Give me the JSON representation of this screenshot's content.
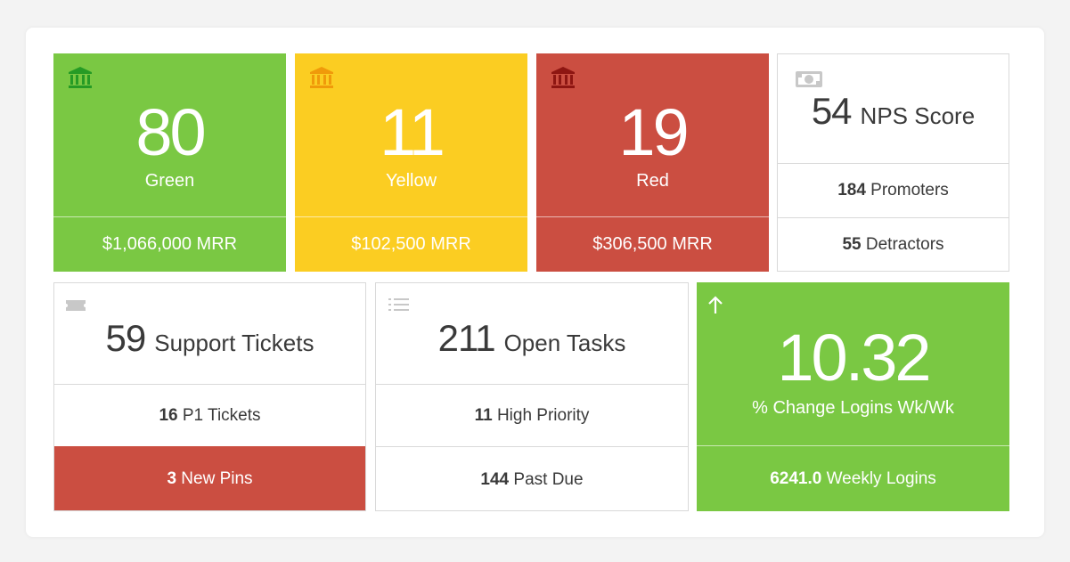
{
  "colors": {
    "green": "#7ac843",
    "yellow": "#fbcd22",
    "red": "#cb4e41",
    "icon_green": "#269b25",
    "icon_yellow": "#f09a0a",
    "icon_red": "#8e1612"
  },
  "health": [
    {
      "value": "80",
      "label": "Green",
      "mrr": "$1,066,000 MRR",
      "icon": "bank-icon"
    },
    {
      "value": "11",
      "label": "Yellow",
      "mrr": "$102,500 MRR",
      "icon": "bank-icon"
    },
    {
      "value": "19",
      "label": "Red",
      "mrr": "$306,500 MRR",
      "icon": "bank-icon"
    }
  ],
  "nps": {
    "icon": "money-icon",
    "value": "54",
    "label": "NPS Score",
    "promoters_value": "184",
    "promoters_label": "Promoters",
    "detractors_value": "55",
    "detractors_label": "Detractors"
  },
  "support": {
    "icon": "ticket-icon",
    "value": "59",
    "label": "Support Tickets",
    "p1_value": "16",
    "p1_label": "P1 Tickets",
    "pins_value": "3",
    "pins_label": "New Pins"
  },
  "tasks": {
    "icon": "list-icon",
    "value": "211",
    "label": "Open Tasks",
    "high_value": "11",
    "high_label": "High Priority",
    "past_value": "144",
    "past_label": "Past Due"
  },
  "logins": {
    "icon": "arrow-up-icon",
    "value": "10.32",
    "label": "% Change Logins Wk/Wk",
    "weekly_value": "6241.0",
    "weekly_label": "Weekly Logins"
  }
}
